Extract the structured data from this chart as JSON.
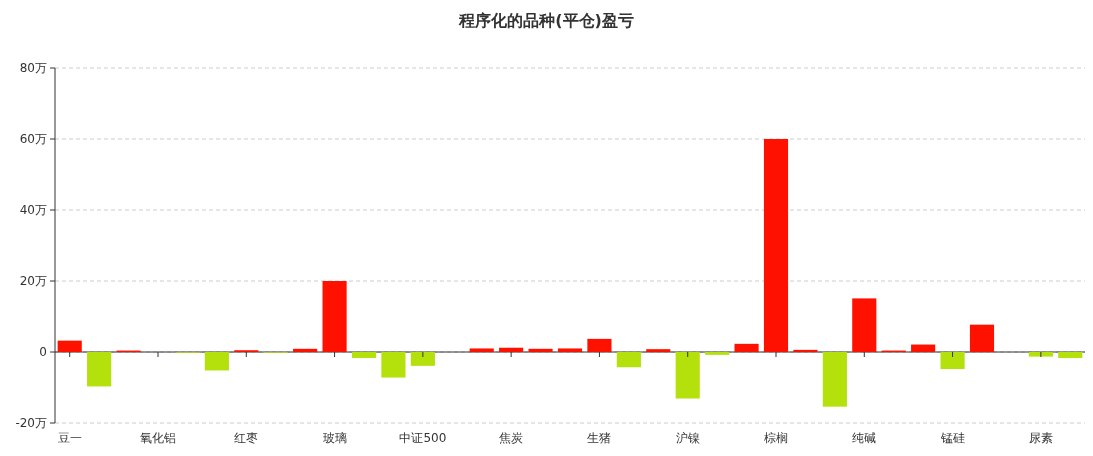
{
  "chart_data": {
    "type": "bar",
    "title": "程序化的品种(平仓)盈亏",
    "categories": [
      "豆一",
      null,
      null,
      "氧化铝",
      null,
      null,
      "红枣",
      null,
      null,
      "玻璃",
      null,
      null,
      "中证500",
      null,
      null,
      "焦炭",
      null,
      null,
      "生猪",
      null,
      null,
      "沪镍",
      null,
      null,
      "棕榈",
      null,
      null,
      "纯碱",
      null,
      null,
      "锰硅",
      null,
      null,
      "尿素",
      null
    ],
    "values": [
      3.2,
      -9.7,
      0.4,
      0,
      -0.2,
      -5.2,
      0.5,
      -0.2,
      0.9,
      20,
      -1.7,
      -7.2,
      -3.9,
      0,
      1.0,
      1.2,
      0.9,
      1.0,
      3.7,
      -4.3,
      0.8,
      -13.1,
      -0.8,
      2.3,
      60,
      0.6,
      -15.4,
      15.1,
      0.4,
      2.1,
      -4.8,
      7.7,
      0,
      -1.3,
      -1.7
    ],
    "colors": [
      "#ff1100",
      "#b4e00c",
      "#ff1100",
      "#ff1100",
      "#b4e00c",
      "#b4e00c",
      "#ff1100",
      "#b4e00c",
      "#ff1100",
      "#ff1100",
      "#b4e00c",
      "#b4e00c",
      "#b4e00c",
      "#ff1100",
      "#ff1100",
      "#ff1100",
      "#ff1100",
      "#ff1100",
      "#ff1100",
      "#b4e00c",
      "#ff1100",
      "#b4e00c",
      "#b4e00c",
      "#ff1100",
      "#ff1100",
      "#ff1100",
      "#b4e00c",
      "#ff1100",
      "#ff1100",
      "#ff1100",
      "#b4e00c",
      "#ff1100",
      "#ff1100",
      "#b4e00c",
      "#b4e00c"
    ],
    "ylim": [
      -20,
      80
    ],
    "yticks": [
      {
        "value": -20,
        "label": "-20万"
      },
      0,
      {
        "value": 20,
        "label": "20万"
      },
      {
        "value": 40,
        "label": "40万"
      },
      {
        "value": 60,
        "label": "60万"
      },
      {
        "value": 80,
        "label": "80万"
      }
    ],
    "grid": "y"
  }
}
